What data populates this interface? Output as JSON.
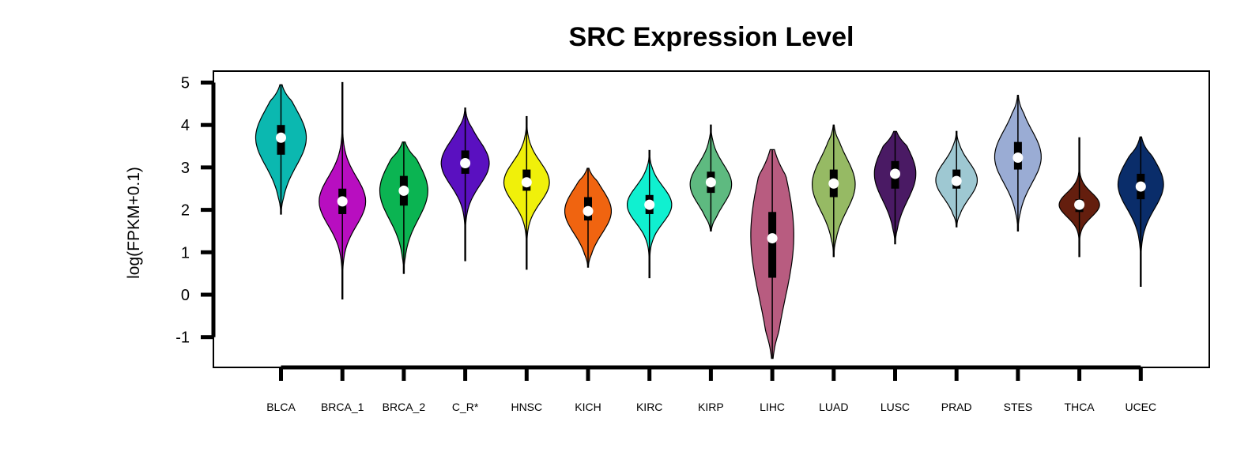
{
  "chart_data": {
    "type": "violin",
    "title": "SRC Expression Level",
    "xlabel": "",
    "ylabel": "log(FPKM+0.1)",
    "ylim": [
      -1.7,
      5.3
    ],
    "yticks": [
      5,
      4,
      3,
      2,
      1,
      0,
      -1
    ],
    "grid": false,
    "legend": "none",
    "series": [
      {
        "name": "BLCA",
        "color": "#0BB8B0",
        "min": 1.9,
        "max": 4.95,
        "q1": 3.3,
        "median": 3.7,
        "q3": 4.0,
        "mode": 3.7,
        "half_width": 1.0
      },
      {
        "name": "BRCA_1",
        "color": "#B80EC0",
        "min": -0.1,
        "max": 5.0,
        "q1": 1.9,
        "median": 2.2,
        "q3": 2.5,
        "mode": 2.2,
        "half_width": 0.92
      },
      {
        "name": "BRCA_2",
        "color": "#0BB452",
        "min": 0.5,
        "max": 3.6,
        "q1": 2.1,
        "median": 2.45,
        "q3": 2.8,
        "mode": 2.45,
        "half_width": 0.95
      },
      {
        "name": "C_R*",
        "color": "#5A10C0",
        "min": 0.8,
        "max": 4.4,
        "q1": 2.85,
        "median": 3.1,
        "q3": 3.4,
        "mode": 3.1,
        "half_width": 0.95
      },
      {
        "name": "HNSC",
        "color": "#F0F00A",
        "min": 0.6,
        "max": 4.2,
        "q1": 2.45,
        "median": 2.65,
        "q3": 2.95,
        "mode": 2.65,
        "half_width": 0.9
      },
      {
        "name": "KICH",
        "color": "#F06410",
        "min": 0.65,
        "max": 2.98,
        "q1": 1.75,
        "median": 1.97,
        "q3": 2.3,
        "mode": 1.97,
        "half_width": 0.92
      },
      {
        "name": "KIRC",
        "color": "#10F0D0",
        "min": 0.4,
        "max": 3.4,
        "q1": 1.9,
        "median": 2.12,
        "q3": 2.35,
        "mode": 2.12,
        "half_width": 0.88
      },
      {
        "name": "KIRP",
        "color": "#5EBA80",
        "min": 1.5,
        "max": 4.0,
        "q1": 2.4,
        "median": 2.65,
        "q3": 2.9,
        "mode": 2.6,
        "half_width": 0.82
      },
      {
        "name": "LIHC",
        "color": "#B85C80",
        "min": -1.5,
        "max": 3.42,
        "q1": 0.4,
        "median": 1.33,
        "q3": 1.95,
        "mode": 1.4,
        "half_width": 0.85
      },
      {
        "name": "LUAD",
        "color": "#96BA64",
        "min": 0.9,
        "max": 4.0,
        "q1": 2.3,
        "median": 2.62,
        "q3": 2.95,
        "mode": 2.6,
        "half_width": 0.85
      },
      {
        "name": "LUSC",
        "color": "#4A1A64",
        "min": 1.2,
        "max": 3.85,
        "q1": 2.5,
        "median": 2.85,
        "q3": 3.15,
        "mode": 2.85,
        "half_width": 0.82
      },
      {
        "name": "PRAD",
        "color": "#9EC8D2",
        "min": 1.6,
        "max": 3.85,
        "q1": 2.5,
        "median": 2.68,
        "q3": 2.95,
        "mode": 2.7,
        "half_width": 0.82
      },
      {
        "name": "STES",
        "color": "#9AACD4",
        "min": 1.5,
        "max": 4.7,
        "q1": 2.95,
        "median": 3.23,
        "q3": 3.6,
        "mode": 3.25,
        "half_width": 0.92
      },
      {
        "name": "THCA",
        "color": "#641E0E",
        "min": 0.9,
        "max": 3.7,
        "q1": 1.95,
        "median": 2.12,
        "q3": 2.25,
        "mode": 2.12,
        "half_width": 0.8
      },
      {
        "name": "UCEC",
        "color": "#0A2D6A",
        "min": 0.2,
        "max": 3.72,
        "q1": 2.25,
        "median": 2.55,
        "q3": 2.85,
        "mode": 2.6,
        "half_width": 0.9
      }
    ]
  }
}
